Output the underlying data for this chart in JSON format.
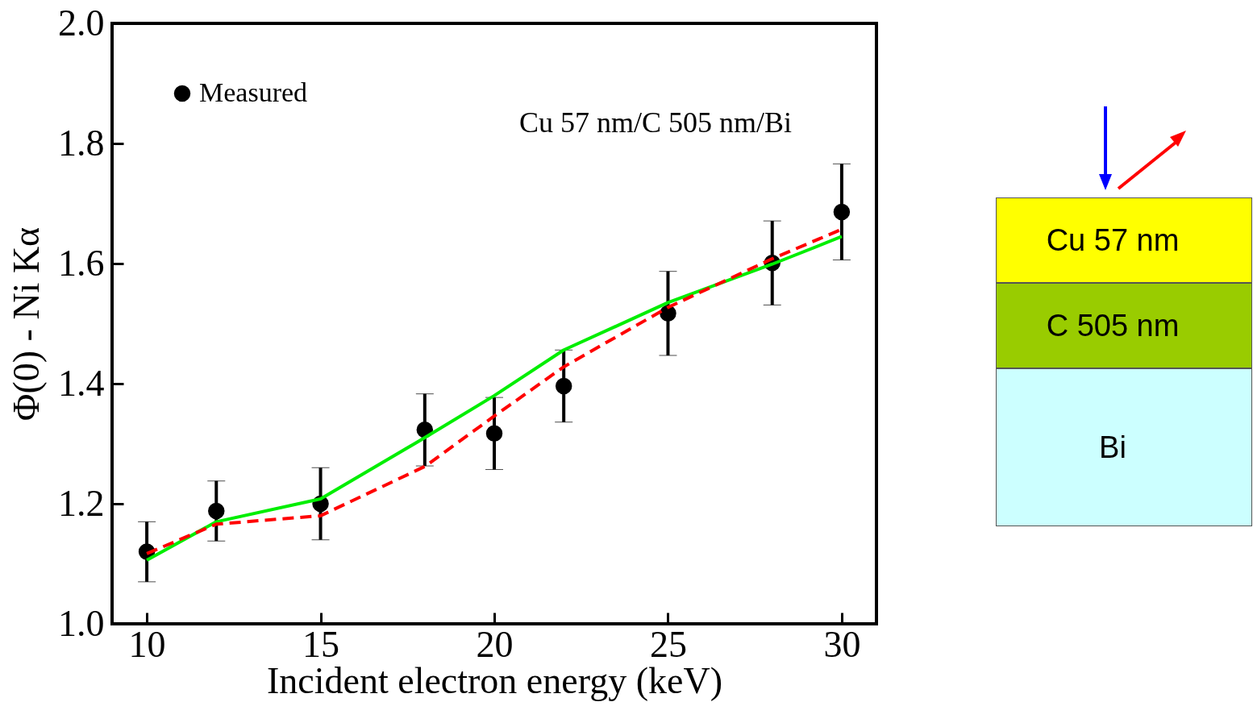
{
  "chart_data": {
    "type": "line",
    "xlabel": "Incident electron energy (keV)",
    "ylabel": "Φ(0)  - Ni Kα",
    "x": [
      10,
      12,
      15,
      18,
      20,
      22,
      25,
      28,
      30
    ],
    "series": [
      {
        "type": "line",
        "color": "#00ee00",
        "line_style": "solid",
        "values": [
          1.106,
          1.17,
          1.208,
          1.31,
          1.38,
          1.456,
          1.535,
          1.599,
          1.645
        ]
      },
      {
        "type": "line",
        "color": "#ff0000",
        "line_style": "dashed",
        "values": [
          1.117,
          1.166,
          1.18,
          1.262,
          1.346,
          1.428,
          1.527,
          1.608,
          1.657
        ]
      },
      {
        "type": "scatter",
        "name": "Measured",
        "color": "#000000",
        "marker": "circle",
        "values": [
          1.12,
          1.188,
          1.2,
          1.323,
          1.317,
          1.396,
          1.517,
          1.601,
          1.686
        ],
        "errors": [
          0.05,
          0.05,
          0.06,
          0.06,
          0.06,
          0.06,
          0.07,
          0.07,
          0.08
        ]
      }
    ],
    "xlim": [
      9,
      31
    ],
    "xticks": [
      10,
      15,
      20,
      25,
      30
    ],
    "ylim": [
      1.0,
      2.0
    ],
    "yticks": [
      {
        "value": 1.0,
        "label": "1.0"
      },
      {
        "value": 1.2,
        "label": "1.2"
      },
      {
        "value": 1.4,
        "label": "1.4"
      },
      {
        "value": 1.6,
        "label": "1.6"
      },
      {
        "value": 1.8,
        "label": "1.8"
      },
      {
        "value": 2.0,
        "label": "2.0"
      }
    ],
    "legend": "top left",
    "annotations": [
      "Cu 57 nm/C 505 nm/Bi",
      "Cu 57 nm",
      "C 505 nm",
      "Bi"
    ]
  }
}
